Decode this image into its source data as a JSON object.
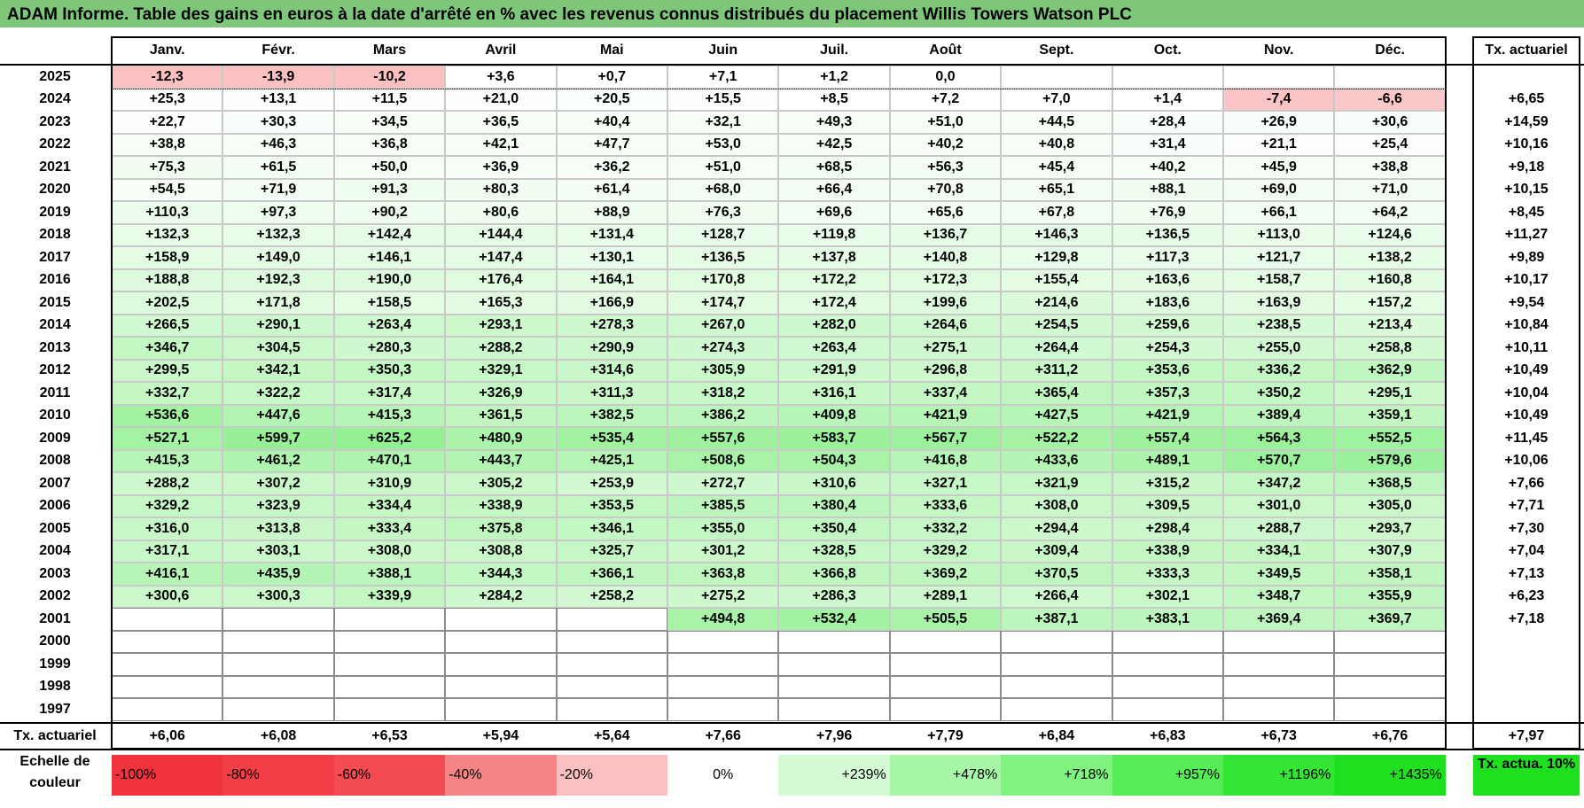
{
  "title": "ADAM Informe. Table des gains en euros à la date d'arrêté en % avec les revenus connus distribués du placement Willis Towers Watson PLC",
  "chart_data": {
    "type": "table",
    "months": [
      "Janv.",
      "Févr.",
      "Mars",
      "Avril",
      "Mai",
      "Juin",
      "Juil.",
      "Août",
      "Sept.",
      "Oct.",
      "Nov.",
      "Déc."
    ],
    "annual_header": "Tx. actuariel",
    "rows": [
      {
        "year": "2025",
        "values": [
          "-12,3",
          "-13,9",
          "-10,2",
          "+3,6",
          "+0,7",
          "+7,1",
          "+1,2",
          "0,0",
          null,
          null,
          null,
          null
        ],
        "rate": ""
      },
      {
        "year": "2024",
        "values": [
          "+25,3",
          "+13,1",
          "+11,5",
          "+21,0",
          "+20,5",
          "+15,5",
          "+8,5",
          "+7,2",
          "+7,0",
          "+1,4",
          "-7,4",
          "-6,6"
        ],
        "rate": "+6,65"
      },
      {
        "year": "2023",
        "values": [
          "+22,7",
          "+30,3",
          "+34,5",
          "+36,5",
          "+40,4",
          "+32,1",
          "+49,3",
          "+51,0",
          "+44,5",
          "+28,4",
          "+26,9",
          "+30,6"
        ],
        "rate": "+14,59"
      },
      {
        "year": "2022",
        "values": [
          "+38,8",
          "+46,3",
          "+36,8",
          "+42,1",
          "+47,7",
          "+53,0",
          "+42,5",
          "+40,2",
          "+40,8",
          "+31,4",
          "+21,1",
          "+25,4"
        ],
        "rate": "+10,16"
      },
      {
        "year": "2021",
        "values": [
          "+75,3",
          "+61,5",
          "+50,0",
          "+36,9",
          "+36,2",
          "+51,0",
          "+68,5",
          "+56,3",
          "+45,4",
          "+40,2",
          "+45,9",
          "+38,8"
        ],
        "rate": "+9,18"
      },
      {
        "year": "2020",
        "values": [
          "+54,5",
          "+71,9",
          "+91,3",
          "+80,3",
          "+61,4",
          "+68,0",
          "+66,4",
          "+70,8",
          "+65,1",
          "+88,1",
          "+69,0",
          "+71,0"
        ],
        "rate": "+10,15"
      },
      {
        "year": "2019",
        "values": [
          "+110,3",
          "+97,3",
          "+90,2",
          "+80,6",
          "+88,9",
          "+76,3",
          "+69,6",
          "+65,6",
          "+67,8",
          "+76,9",
          "+66,1",
          "+64,2"
        ],
        "rate": "+8,45"
      },
      {
        "year": "2018",
        "values": [
          "+132,3",
          "+132,3",
          "+142,4",
          "+144,4",
          "+131,4",
          "+128,7",
          "+119,8",
          "+136,7",
          "+146,3",
          "+136,5",
          "+113,0",
          "+124,6"
        ],
        "rate": "+11,27"
      },
      {
        "year": "2017",
        "values": [
          "+158,9",
          "+149,0",
          "+146,1",
          "+147,4",
          "+130,1",
          "+136,5",
          "+137,8",
          "+140,8",
          "+129,8",
          "+117,3",
          "+121,7",
          "+138,2"
        ],
        "rate": "+9,89"
      },
      {
        "year": "2016",
        "values": [
          "+188,8",
          "+192,3",
          "+190,0",
          "+176,4",
          "+164,1",
          "+170,8",
          "+172,2",
          "+172,3",
          "+155,4",
          "+163,6",
          "+158,7",
          "+160,8"
        ],
        "rate": "+10,17"
      },
      {
        "year": "2015",
        "values": [
          "+202,5",
          "+171,8",
          "+158,5",
          "+165,3",
          "+166,9",
          "+174,7",
          "+172,4",
          "+199,6",
          "+214,6",
          "+183,6",
          "+163,9",
          "+157,2"
        ],
        "rate": "+9,54"
      },
      {
        "year": "2014",
        "values": [
          "+266,5",
          "+290,1",
          "+263,4",
          "+293,1",
          "+278,3",
          "+267,0",
          "+282,0",
          "+264,6",
          "+254,5",
          "+259,6",
          "+238,5",
          "+213,4"
        ],
        "rate": "+10,84"
      },
      {
        "year": "2013",
        "values": [
          "+346,7",
          "+304,5",
          "+280,3",
          "+288,2",
          "+290,9",
          "+274,3",
          "+263,4",
          "+275,1",
          "+264,4",
          "+254,3",
          "+255,0",
          "+258,8"
        ],
        "rate": "+10,11"
      },
      {
        "year": "2012",
        "values": [
          "+299,5",
          "+342,1",
          "+350,3",
          "+329,1",
          "+314,6",
          "+305,9",
          "+291,9",
          "+296,8",
          "+311,2",
          "+353,6",
          "+336,2",
          "+362,9"
        ],
        "rate": "+10,49"
      },
      {
        "year": "2011",
        "values": [
          "+332,7",
          "+322,2",
          "+317,4",
          "+326,9",
          "+311,3",
          "+318,2",
          "+316,1",
          "+337,4",
          "+365,4",
          "+357,3",
          "+350,2",
          "+295,1"
        ],
        "rate": "+10,04"
      },
      {
        "year": "2010",
        "values": [
          "+536,6",
          "+447,6",
          "+415,3",
          "+361,5",
          "+382,5",
          "+386,2",
          "+409,8",
          "+421,9",
          "+427,5",
          "+421,9",
          "+389,4",
          "+359,1"
        ],
        "rate": "+10,49"
      },
      {
        "year": "2009",
        "values": [
          "+527,1",
          "+599,7",
          "+625,2",
          "+480,9",
          "+535,4",
          "+557,6",
          "+583,7",
          "+567,7",
          "+522,2",
          "+557,4",
          "+564,3",
          "+552,5"
        ],
        "rate": "+11,45"
      },
      {
        "year": "2008",
        "values": [
          "+415,3",
          "+461,2",
          "+470,1",
          "+443,7",
          "+425,1",
          "+508,6",
          "+504,3",
          "+416,8",
          "+433,6",
          "+489,1",
          "+570,7",
          "+579,6"
        ],
        "rate": "+10,06"
      },
      {
        "year": "2007",
        "values": [
          "+288,2",
          "+307,2",
          "+310,9",
          "+305,2",
          "+253,9",
          "+272,7",
          "+310,6",
          "+327,1",
          "+321,9",
          "+315,2",
          "+347,2",
          "+368,5"
        ],
        "rate": "+7,66"
      },
      {
        "year": "2006",
        "values": [
          "+329,2",
          "+323,9",
          "+334,4",
          "+338,9",
          "+353,5",
          "+385,5",
          "+380,4",
          "+333,6",
          "+308,0",
          "+309,5",
          "+301,0",
          "+305,0"
        ],
        "rate": "+7,71"
      },
      {
        "year": "2005",
        "values": [
          "+316,0",
          "+313,8",
          "+333,4",
          "+375,8",
          "+346,1",
          "+355,0",
          "+350,4",
          "+332,2",
          "+294,4",
          "+298,4",
          "+288,7",
          "+293,7"
        ],
        "rate": "+7,30"
      },
      {
        "year": "2004",
        "values": [
          "+317,1",
          "+303,1",
          "+308,0",
          "+308,8",
          "+325,7",
          "+301,2",
          "+328,5",
          "+329,2",
          "+309,4",
          "+338,9",
          "+334,1",
          "+307,9"
        ],
        "rate": "+7,04"
      },
      {
        "year": "2003",
        "values": [
          "+416,1",
          "+435,9",
          "+388,1",
          "+344,3",
          "+366,1",
          "+363,8",
          "+366,8",
          "+369,2",
          "+370,5",
          "+333,3",
          "+349,5",
          "+358,1"
        ],
        "rate": "+7,13"
      },
      {
        "year": "2002",
        "values": [
          "+300,6",
          "+300,3",
          "+339,9",
          "+284,2",
          "+258,2",
          "+275,2",
          "+286,3",
          "+289,1",
          "+266,4",
          "+302,1",
          "+348,7",
          "+355,9"
        ],
        "rate": "+6,23"
      },
      {
        "year": "2001",
        "values": [
          null,
          null,
          null,
          null,
          null,
          "+494,8",
          "+532,4",
          "+505,5",
          "+387,1",
          "+383,1",
          "+369,4",
          "+369,7"
        ],
        "rate": "+7,18"
      },
      {
        "year": "2000",
        "values": [
          null,
          null,
          null,
          null,
          null,
          null,
          null,
          null,
          null,
          null,
          null,
          null
        ],
        "rate": ""
      },
      {
        "year": "1999",
        "values": [
          null,
          null,
          null,
          null,
          null,
          null,
          null,
          null,
          null,
          null,
          null,
          null
        ],
        "rate": ""
      },
      {
        "year": "1998",
        "values": [
          null,
          null,
          null,
          null,
          null,
          null,
          null,
          null,
          null,
          null,
          null,
          null
        ],
        "rate": ""
      },
      {
        "year": "1997",
        "values": [
          null,
          null,
          null,
          null,
          null,
          null,
          null,
          null,
          null,
          null,
          null,
          null
        ],
        "rate": ""
      }
    ],
    "footer": {
      "label": "Tx. actuariel",
      "values": [
        "+6,06",
        "+6,08",
        "+6,53",
        "+5,94",
        "+5,64",
        "+7,66",
        "+7,96",
        "+7,79",
        "+6,84",
        "+6,83",
        "+6,73",
        "+6,76"
      ],
      "total": "+7,97"
    },
    "color_scale": {
      "label": "Echelle de couleur",
      "stops": [
        {
          "label": "-100%",
          "color": "#f0323c"
        },
        {
          "label": "-80%",
          "color": "#f23e46"
        },
        {
          "label": "-60%",
          "color": "#f44a52"
        },
        {
          "label": "-40%",
          "color": "#f78587"
        },
        {
          "label": "-20%",
          "color": "#fbc0c2"
        },
        {
          "label": "0%",
          "color": "#ffffff"
        },
        {
          "label": "+239%",
          "color": "#d4fbd4"
        },
        {
          "label": "+478%",
          "color": "#a8f7a8"
        },
        {
          "label": "+718%",
          "color": "#7ff27f"
        },
        {
          "label": "+957%",
          "color": "#55ec55"
        },
        {
          "label": "+1196%",
          "color": "#33e633"
        },
        {
          "label": "+1435%",
          "color": "#1fe01f"
        }
      ],
      "rate_label": "Tx. actua. 10%",
      "rate_color": "#1fe01f"
    }
  }
}
